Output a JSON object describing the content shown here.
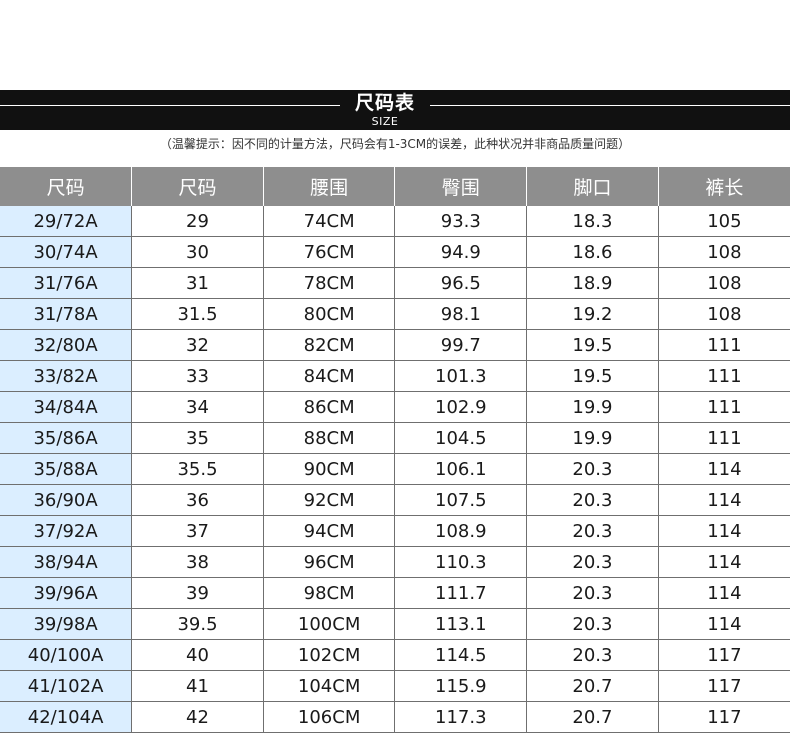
{
  "banner": {
    "title": "尺码表",
    "subtitle": "SIZE"
  },
  "note": "（温馨提示：因不同的计量方法，尺码会有1-3CM的误差，此种状况并非商品质量问题）",
  "colors": {
    "banner_bg": "#111111",
    "header_bg": "#8e8e8e",
    "first_col_bg": "#dbeeff"
  },
  "table": {
    "headers": [
      "尺码",
      "尺码",
      "腰围",
      "臀围",
      "脚口",
      "裤长"
    ],
    "rows": [
      [
        "29/72A",
        "29",
        "74CM",
        "93.3",
        "18.3",
        "105"
      ],
      [
        "30/74A",
        "30",
        "76CM",
        "94.9",
        "18.6",
        "108"
      ],
      [
        "31/76A",
        "31",
        "78CM",
        "96.5",
        "18.9",
        "108"
      ],
      [
        "31/78A",
        "31.5",
        "80CM",
        "98.1",
        "19.2",
        "108"
      ],
      [
        "32/80A",
        "32",
        "82CM",
        "99.7",
        "19.5",
        "111"
      ],
      [
        "33/82A",
        "33",
        "84CM",
        "101.3",
        "19.5",
        "111"
      ],
      [
        "34/84A",
        "34",
        "86CM",
        "102.9",
        "19.9",
        "111"
      ],
      [
        "35/86A",
        "35",
        "88CM",
        "104.5",
        "19.9",
        "111"
      ],
      [
        "35/88A",
        "35.5",
        "90CM",
        "106.1",
        "20.3",
        "114"
      ],
      [
        "36/90A",
        "36",
        "92CM",
        "107.5",
        "20.3",
        "114"
      ],
      [
        "37/92A",
        "37",
        "94CM",
        "108.9",
        "20.3",
        "114"
      ],
      [
        "38/94A",
        "38",
        "96CM",
        "110.3",
        "20.3",
        "114"
      ],
      [
        "39/96A",
        "39",
        "98CM",
        "111.7",
        "20.3",
        "114"
      ],
      [
        "39/98A",
        "39.5",
        "100CM",
        "113.1",
        "20.3",
        "114"
      ],
      [
        "40/100A",
        "40",
        "102CM",
        "114.5",
        "20.3",
        "117"
      ],
      [
        "41/102A",
        "41",
        "104CM",
        "115.9",
        "20.7",
        "117"
      ],
      [
        "42/104A",
        "42",
        "106CM",
        "117.3",
        "20.7",
        "117"
      ]
    ]
  }
}
